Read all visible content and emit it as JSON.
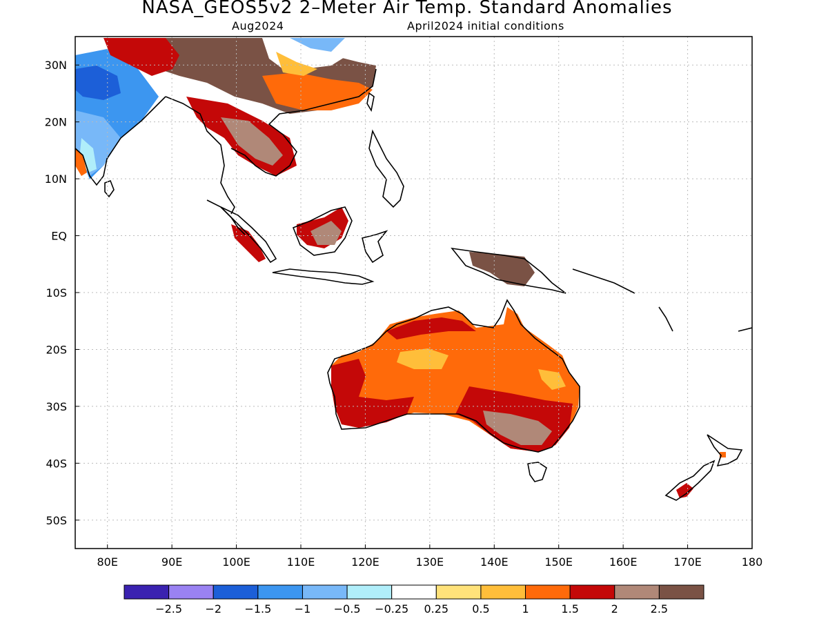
{
  "title": "NASA_GEOS5v2 2–Meter Air Temp. Standard Anomalies",
  "subtitle_left": "Aug2024",
  "subtitle_right": "April2024 initial conditions",
  "map": {
    "lon_range": [
      75,
      180
    ],
    "lat_range": [
      -55,
      35
    ],
    "lon_ticks": [
      "80E",
      "90E",
      "100E",
      "110E",
      "120E",
      "130E",
      "140E",
      "150E",
      "160E",
      "170E",
      "180"
    ],
    "lat_ticks": [
      "30N",
      "20N",
      "10N",
      "EQ",
      "10S",
      "20S",
      "30S",
      "40S",
      "50S"
    ],
    "grid": "dotted"
  },
  "colorbar": {
    "colors": [
      "#3a22b0",
      "#9a82f2",
      "#1c5fd8",
      "#3c96f0",
      "#78b8f8",
      "#b0eefa",
      "#ffffff",
      "#ffe27a",
      "#ffbe3a",
      "#ff6a0a",
      "#c40808",
      "#b08878",
      "#7a5245"
    ],
    "labels": [
      "−2.5",
      "−2",
      "−1.5",
      "−1",
      "−0.5",
      "−0.25",
      "0.25",
      "0.5",
      "1",
      "1.5",
      "2",
      "2.5"
    ]
  }
}
